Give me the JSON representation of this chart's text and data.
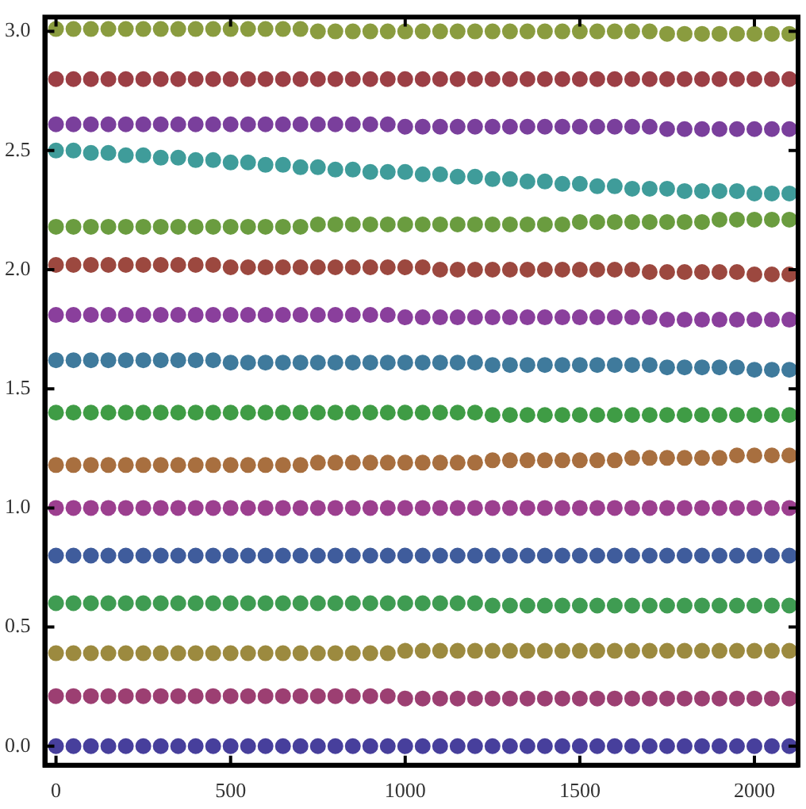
{
  "chart_data": {
    "type": "scatter",
    "marker": "circle",
    "x": [
      0,
      50,
      100,
      150,
      200,
      250,
      300,
      350,
      400,
      450,
      500,
      550,
      600,
      650,
      700,
      750,
      800,
      850,
      900,
      950,
      1000,
      1050,
      1100,
      1150,
      1200,
      1250,
      1300,
      1350,
      1400,
      1450,
      1500,
      1550,
      1600,
      1650,
      1700,
      1750,
      1800,
      1850,
      1900,
      1950,
      2000,
      2050,
      2100
    ],
    "xlim": [
      -32,
      2125
    ],
    "ylim": [
      -0.08,
      3.06
    ],
    "xticks": [
      0,
      500,
      1000,
      1500,
      2000
    ],
    "yticks": [
      {
        "value": 0,
        "label": "0.0"
      },
      {
        "value": 0.5,
        "label": "0.5"
      },
      {
        "value": 1,
        "label": "1.0"
      },
      {
        "value": 1.5,
        "label": "1.5"
      },
      {
        "value": 2,
        "label": "2.0"
      },
      {
        "value": 2.5,
        "label": "2.5"
      },
      {
        "value": 3,
        "label": "3.0"
      }
    ],
    "series": [
      {
        "color": "#473f9c",
        "values": [
          0,
          0,
          0,
          0,
          0,
          0,
          0,
          0,
          0,
          0,
          0,
          0,
          0,
          0,
          0,
          0,
          0,
          0,
          0,
          0,
          0,
          0,
          0,
          0,
          0,
          0,
          0,
          0,
          0,
          0,
          0,
          0,
          0,
          0,
          0,
          0,
          0,
          0,
          0,
          0,
          0,
          0,
          0
        ]
      },
      {
        "color": "#9c3f72",
        "values": [
          0.21,
          0.21,
          0.21,
          0.21,
          0.21,
          0.21,
          0.21,
          0.21,
          0.21,
          0.21,
          0.21,
          0.21,
          0.21,
          0.21,
          0.21,
          0.21,
          0.21,
          0.21,
          0.21,
          0.21,
          0.2,
          0.2,
          0.2,
          0.2,
          0.2,
          0.2,
          0.2,
          0.2,
          0.2,
          0.2,
          0.2,
          0.2,
          0.2,
          0.2,
          0.2,
          0.2,
          0.2,
          0.2,
          0.2,
          0.2,
          0.2,
          0.2,
          0.2
        ]
      },
      {
        "color": "#9c8a3f",
        "values": [
          0.39,
          0.39,
          0.39,
          0.39,
          0.39,
          0.39,
          0.39,
          0.39,
          0.39,
          0.39,
          0.39,
          0.39,
          0.39,
          0.39,
          0.39,
          0.39,
          0.39,
          0.39,
          0.39,
          0.39,
          0.4,
          0.4,
          0.4,
          0.4,
          0.4,
          0.4,
          0.4,
          0.4,
          0.4,
          0.4,
          0.4,
          0.4,
          0.4,
          0.4,
          0.4,
          0.4,
          0.4,
          0.4,
          0.4,
          0.4,
          0.4,
          0.4,
          0.4
        ]
      },
      {
        "color": "#3f9c52",
        "values": [
          0.6,
          0.6,
          0.6,
          0.6,
          0.6,
          0.6,
          0.6,
          0.6,
          0.6,
          0.6,
          0.6,
          0.6,
          0.6,
          0.6,
          0.6,
          0.6,
          0.6,
          0.6,
          0.6,
          0.6,
          0.6,
          0.6,
          0.6,
          0.6,
          0.6,
          0.59,
          0.59,
          0.59,
          0.59,
          0.59,
          0.59,
          0.59,
          0.59,
          0.59,
          0.59,
          0.59,
          0.59,
          0.59,
          0.59,
          0.59,
          0.59,
          0.59,
          0.59
        ]
      },
      {
        "color": "#3f5c9c",
        "values": [
          0.8,
          0.8,
          0.8,
          0.8,
          0.8,
          0.8,
          0.8,
          0.8,
          0.8,
          0.8,
          0.8,
          0.8,
          0.8,
          0.8,
          0.8,
          0.8,
          0.8,
          0.8,
          0.8,
          0.8,
          0.8,
          0.8,
          0.8,
          0.8,
          0.8,
          0.8,
          0.8,
          0.8,
          0.8,
          0.8,
          0.8,
          0.8,
          0.8,
          0.8,
          0.8,
          0.8,
          0.8,
          0.8,
          0.8,
          0.8,
          0.8,
          0.8,
          0.8
        ]
      },
      {
        "color": "#9c3f8f",
        "values": [
          1,
          1,
          1,
          1,
          1,
          1,
          1,
          1,
          1,
          1,
          1,
          1,
          1,
          1,
          1,
          1,
          1,
          1,
          1,
          1,
          1,
          1,
          1,
          1,
          1,
          1,
          1,
          1,
          1,
          1,
          1,
          1,
          1,
          1,
          1,
          1,
          1,
          1,
          1,
          1,
          1,
          1,
          1
        ]
      },
      {
        "color": "#a86f3f",
        "values": [
          1.18,
          1.18,
          1.18,
          1.18,
          1.18,
          1.18,
          1.18,
          1.18,
          1.18,
          1.18,
          1.18,
          1.18,
          1.18,
          1.18,
          1.18,
          1.19,
          1.19,
          1.19,
          1.19,
          1.19,
          1.19,
          1.19,
          1.19,
          1.19,
          1.19,
          1.2,
          1.2,
          1.2,
          1.2,
          1.2,
          1.2,
          1.2,
          1.2,
          1.21,
          1.21,
          1.21,
          1.21,
          1.21,
          1.21,
          1.22,
          1.22,
          1.22,
          1.22
        ]
      },
      {
        "color": "#3f9c45",
        "values": [
          1.4,
          1.4,
          1.4,
          1.4,
          1.4,
          1.4,
          1.4,
          1.4,
          1.4,
          1.4,
          1.4,
          1.4,
          1.4,
          1.4,
          1.4,
          1.4,
          1.4,
          1.4,
          1.4,
          1.4,
          1.4,
          1.4,
          1.4,
          1.4,
          1.4,
          1.39,
          1.39,
          1.39,
          1.39,
          1.39,
          1.39,
          1.39,
          1.39,
          1.39,
          1.39,
          1.39,
          1.39,
          1.39,
          1.39,
          1.39,
          1.39,
          1.39,
          1.39
        ]
      },
      {
        "color": "#3f7a9c",
        "values": [
          1.62,
          1.62,
          1.62,
          1.62,
          1.62,
          1.62,
          1.62,
          1.62,
          1.62,
          1.62,
          1.61,
          1.61,
          1.61,
          1.61,
          1.61,
          1.61,
          1.61,
          1.61,
          1.61,
          1.61,
          1.61,
          1.61,
          1.61,
          1.61,
          1.61,
          1.6,
          1.6,
          1.6,
          1.6,
          1.6,
          1.6,
          1.6,
          1.6,
          1.6,
          1.6,
          1.59,
          1.59,
          1.59,
          1.59,
          1.59,
          1.58,
          1.58,
          1.58
        ]
      },
      {
        "color": "#8a3f9c",
        "values": [
          1.81,
          1.81,
          1.81,
          1.81,
          1.81,
          1.81,
          1.81,
          1.81,
          1.81,
          1.81,
          1.81,
          1.81,
          1.81,
          1.81,
          1.81,
          1.81,
          1.81,
          1.81,
          1.81,
          1.81,
          1.8,
          1.8,
          1.8,
          1.8,
          1.8,
          1.8,
          1.8,
          1.8,
          1.8,
          1.8,
          1.8,
          1.8,
          1.8,
          1.8,
          1.8,
          1.79,
          1.79,
          1.79,
          1.79,
          1.79,
          1.79,
          1.79,
          1.79
        ]
      },
      {
        "color": "#9c483f",
        "values": [
          2.02,
          2.02,
          2.02,
          2.02,
          2.02,
          2.02,
          2.02,
          2.02,
          2.02,
          2.02,
          2.01,
          2.01,
          2.01,
          2.01,
          2.01,
          2.01,
          2.01,
          2.01,
          2.01,
          2.01,
          2.01,
          2.01,
          2,
          2,
          2,
          2,
          2,
          2,
          2,
          2,
          2,
          2,
          2,
          2,
          1.99,
          1.99,
          1.99,
          1.99,
          1.99,
          1.99,
          1.98,
          1.98,
          1.98
        ]
      },
      {
        "color": "#6a9c3f",
        "values": [
          2.18,
          2.18,
          2.18,
          2.18,
          2.18,
          2.18,
          2.18,
          2.18,
          2.18,
          2.18,
          2.18,
          2.18,
          2.18,
          2.18,
          2.18,
          2.19,
          2.19,
          2.19,
          2.19,
          2.19,
          2.19,
          2.19,
          2.19,
          2.19,
          2.19,
          2.19,
          2.19,
          2.19,
          2.19,
          2.19,
          2.2,
          2.2,
          2.2,
          2.2,
          2.2,
          2.2,
          2.2,
          2.2,
          2.21,
          2.21,
          2.21,
          2.21,
          2.21
        ]
      },
      {
        "color": "#3f9c9a",
        "values": [
          2.5,
          2.5,
          2.49,
          2.49,
          2.48,
          2.48,
          2.47,
          2.47,
          2.46,
          2.46,
          2.45,
          2.45,
          2.44,
          2.44,
          2.43,
          2.43,
          2.42,
          2.42,
          2.41,
          2.41,
          2.41,
          2.4,
          2.4,
          2.39,
          2.39,
          2.38,
          2.38,
          2.37,
          2.37,
          2.36,
          2.36,
          2.35,
          2.35,
          2.34,
          2.34,
          2.34,
          2.33,
          2.33,
          2.33,
          2.33,
          2.32,
          2.32,
          2.32
        ]
      },
      {
        "color": "#7a3f9c",
        "values": [
          2.61,
          2.61,
          2.61,
          2.61,
          2.61,
          2.61,
          2.61,
          2.61,
          2.61,
          2.61,
          2.61,
          2.61,
          2.61,
          2.61,
          2.61,
          2.61,
          2.61,
          2.61,
          2.61,
          2.61,
          2.6,
          2.6,
          2.6,
          2.6,
          2.6,
          2.6,
          2.6,
          2.6,
          2.6,
          2.6,
          2.6,
          2.6,
          2.6,
          2.6,
          2.6,
          2.59,
          2.59,
          2.59,
          2.59,
          2.59,
          2.59,
          2.59,
          2.59
        ]
      },
      {
        "color": "#9c3f45",
        "values": [
          2.8,
          2.8,
          2.8,
          2.8,
          2.8,
          2.8,
          2.8,
          2.8,
          2.8,
          2.8,
          2.8,
          2.8,
          2.8,
          2.8,
          2.8,
          2.8,
          2.8,
          2.8,
          2.8,
          2.8,
          2.8,
          2.8,
          2.8,
          2.8,
          2.8,
          2.8,
          2.8,
          2.8,
          2.8,
          2.8,
          2.8,
          2.8,
          2.8,
          2.8,
          2.8,
          2.8,
          2.8,
          2.8,
          2.8,
          2.8,
          2.8,
          2.8,
          2.8
        ]
      },
      {
        "color": "#8a9c3f",
        "values": [
          3.01,
          3.01,
          3.01,
          3.01,
          3.01,
          3.01,
          3.01,
          3.01,
          3.01,
          3.01,
          3.01,
          3.01,
          3.01,
          3.01,
          3.01,
          3,
          3,
          3,
          3,
          3,
          3,
          3,
          3,
          3,
          3,
          3,
          3,
          3,
          3,
          3,
          3,
          3,
          3,
          3,
          3,
          2.99,
          2.99,
          2.99,
          2.99,
          2.99,
          2.99,
          2.99,
          2.99
        ]
      }
    ]
  }
}
